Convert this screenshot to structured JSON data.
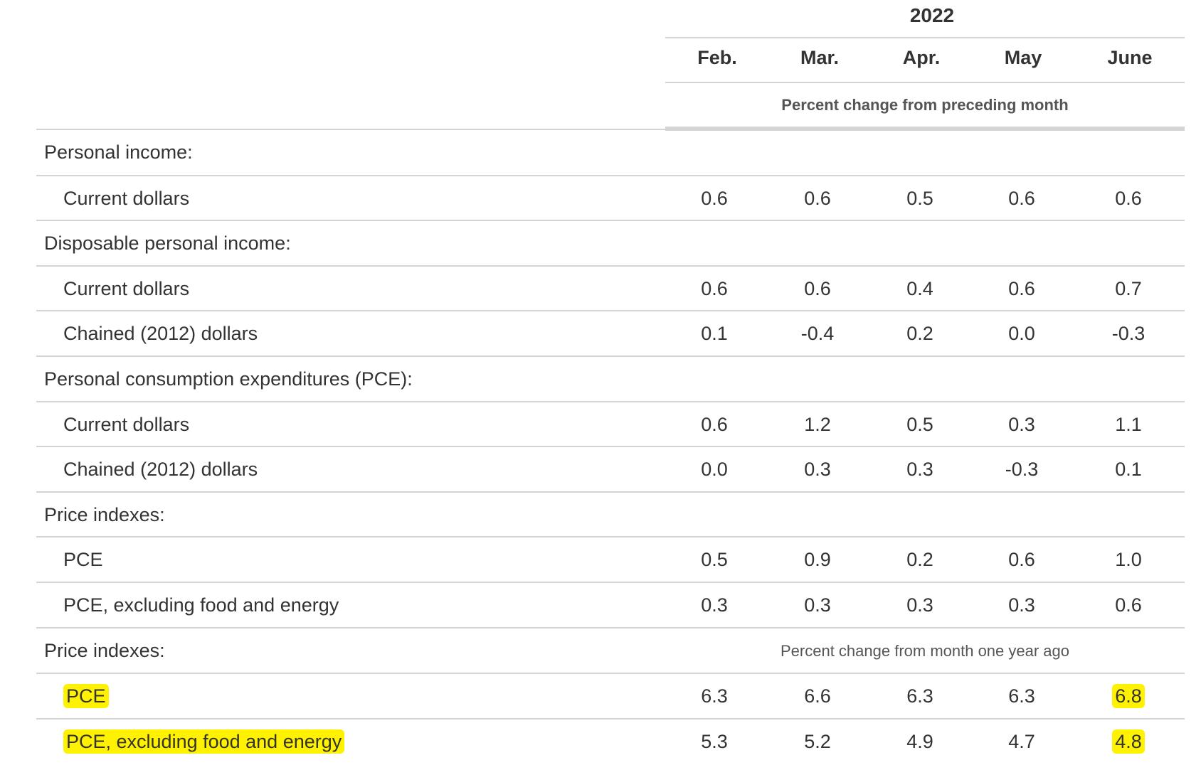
{
  "header": {
    "year": "2022",
    "months": [
      "Feb.",
      "Mar.",
      "Apr.",
      "May",
      "June"
    ],
    "unit_note_1": "Percent change from preceding month",
    "unit_note_2": "Percent change from month one year ago"
  },
  "rows": [
    {
      "label": "Personal income:",
      "type": "section",
      "values": []
    },
    {
      "label": "Current dollars",
      "type": "sub",
      "values": [
        "0.6",
        "0.6",
        "0.5",
        "0.6",
        "0.6"
      ]
    },
    {
      "label": "Disposable personal income:",
      "type": "section",
      "values": []
    },
    {
      "label": "Current dollars",
      "type": "sub",
      "values": [
        "0.6",
        "0.6",
        "0.4",
        "0.6",
        "0.7"
      ]
    },
    {
      "label": "Chained (2012) dollars",
      "type": "sub",
      "values": [
        "0.1",
        "-0.4",
        "0.2",
        "0.0",
        "-0.3"
      ]
    },
    {
      "label": "Personal consumption expenditures (PCE):",
      "type": "section",
      "values": []
    },
    {
      "label": "Current dollars",
      "type": "sub",
      "values": [
        "0.6",
        "1.2",
        "0.5",
        "0.3",
        "1.1"
      ]
    },
    {
      "label": "Chained (2012) dollars",
      "type": "sub",
      "values": [
        "0.0",
        "0.3",
        "0.3",
        "-0.3",
        "0.1"
      ]
    },
    {
      "label": "Price indexes:",
      "type": "section",
      "values": []
    },
    {
      "label": "PCE",
      "type": "sub",
      "values": [
        "0.5",
        "0.9",
        "0.2",
        "0.6",
        "1.0"
      ]
    },
    {
      "label": "PCE, excluding food and energy",
      "type": "sub",
      "values": [
        "0.3",
        "0.3",
        "0.3",
        "0.3",
        "0.6"
      ]
    },
    {
      "label": "Price indexes:",
      "type": "section",
      "values": []
    },
    {
      "label": "PCE",
      "type": "sub",
      "values": [
        "6.3",
        "6.6",
        "6.3",
        "6.3",
        "6.8"
      ]
    },
    {
      "label": "PCE, excluding food and energy",
      "type": "sub",
      "values": [
        "5.3",
        "5.2",
        "4.9",
        "4.7",
        "4.8"
      ]
    }
  ],
  "colors": {
    "highlight": "#fff200",
    "rule": "#d4d4d4",
    "text": "#333333"
  }
}
